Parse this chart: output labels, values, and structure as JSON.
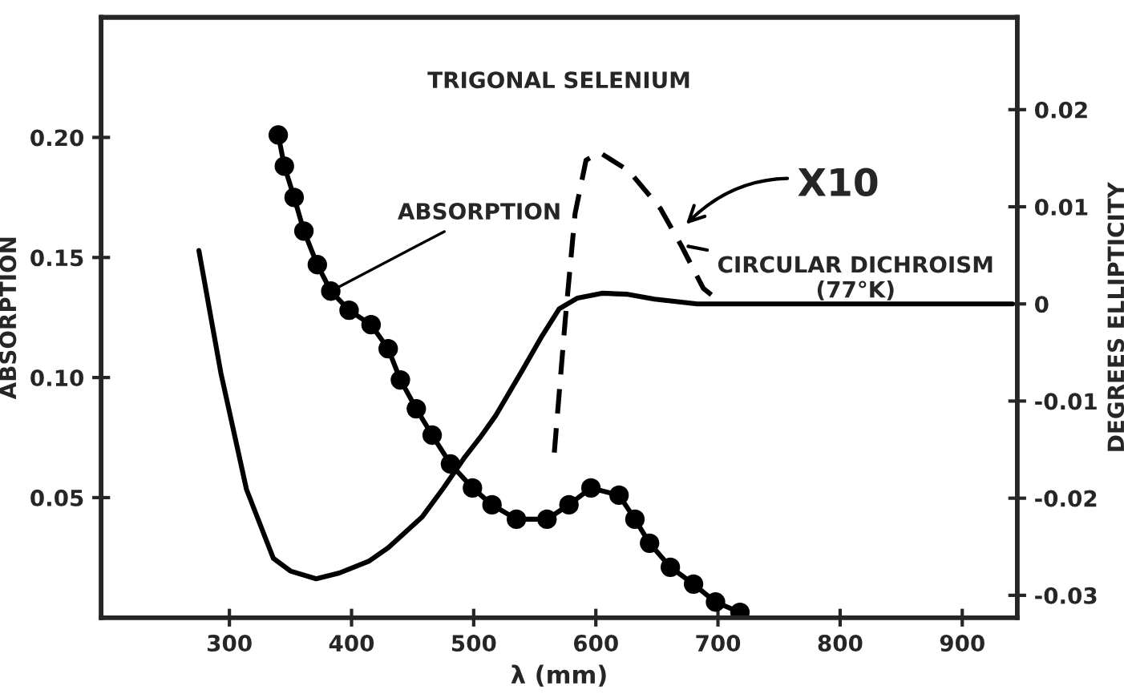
{
  "chart_data": {
    "type": "line",
    "title": "TRIGONAL SELENIUM",
    "xlabel": "λ (mm)",
    "ylabel": "ABSORPTION",
    "y2label": "DEGREES ELLIPTICITY",
    "xlim": [
      195,
      945
    ],
    "xticks": [
      300,
      400,
      500,
      600,
      700,
      800,
      900
    ],
    "ylim": [
      0,
      0.25
    ],
    "yticks": [
      {
        "value": 0.05,
        "label": "0.05"
      },
      {
        "value": 0.1,
        "label": "0.10"
      },
      {
        "value": 0.15,
        "label": "0.15"
      },
      {
        "value": 0.2,
        "label": "0.20"
      }
    ],
    "y2lim": [
      -0.0323,
      0.0295
    ],
    "y2ticks": [
      -0.03,
      -0.02,
      -0.01,
      0,
      0.01,
      0.02
    ],
    "grid": false,
    "legend": false,
    "series": [
      {
        "color": "#000000",
        "marker": "circle",
        "line_style": "solid",
        "x": [
          340,
          345,
          353,
          361,
          372,
          383,
          398,
          416,
          430,
          440,
          453,
          466,
          481,
          499,
          515,
          535,
          560,
          578,
          596,
          619,
          632,
          644,
          661,
          680,
          698,
          718
        ],
        "values": [
          0.201,
          0.188,
          0.175,
          0.161,
          0.147,
          0.136,
          0.128,
          0.122,
          0.112,
          0.099,
          0.087,
          0.076,
          0.064,
          0.054,
          0.047,
          0.041,
          0.041,
          0.047,
          0.054,
          0.051,
          0.041,
          0.031,
          0.021,
          0.014,
          0.0065,
          0.0022
        ]
      },
      {
        "color": "#000000",
        "marker": "none",
        "line_style": "solid",
        "axis": "y2",
        "x": [
          275,
          293,
          314,
          336,
          350,
          371,
          390,
          414,
          430,
          458,
          475,
          492,
          505,
          518,
          540,
          555,
          570,
          585,
          605,
          625,
          648,
          683,
          941
        ],
        "values": [
          0.0055,
          -0.0071,
          -0.0191,
          -0.0262,
          -0.0275,
          -0.0283,
          -0.0277,
          -0.0265,
          -0.0251,
          -0.0219,
          -0.019,
          -0.0159,
          -0.0138,
          -0.0115,
          -0.0068,
          -0.0035,
          -0.0005,
          0.0006,
          0.0011,
          0.001,
          0.0005,
          0,
          0
        ]
      },
      {
        "color": "#000000",
        "marker": "none",
        "line_style": "dashed",
        "axis": "y2",
        "x": [
          566,
          575,
          583,
          592,
          603,
          627,
          653,
          670,
          688,
          701
        ],
        "values": [
          -0.0153,
          -0.0016,
          0.0093,
          0.0148,
          0.0156,
          0.0137,
          0.0098,
          0.006,
          0.0016,
          0.0003
        ]
      }
    ],
    "annotations": [
      {
        "text": "ABSORPTION",
        "x": 383,
        "y": 0.136
      },
      "X10",
      {
        "text": "CIRCULAR DICHROISM\n(77°K)",
        "x": 672,
        "y": 0.155
      }
    ]
  }
}
